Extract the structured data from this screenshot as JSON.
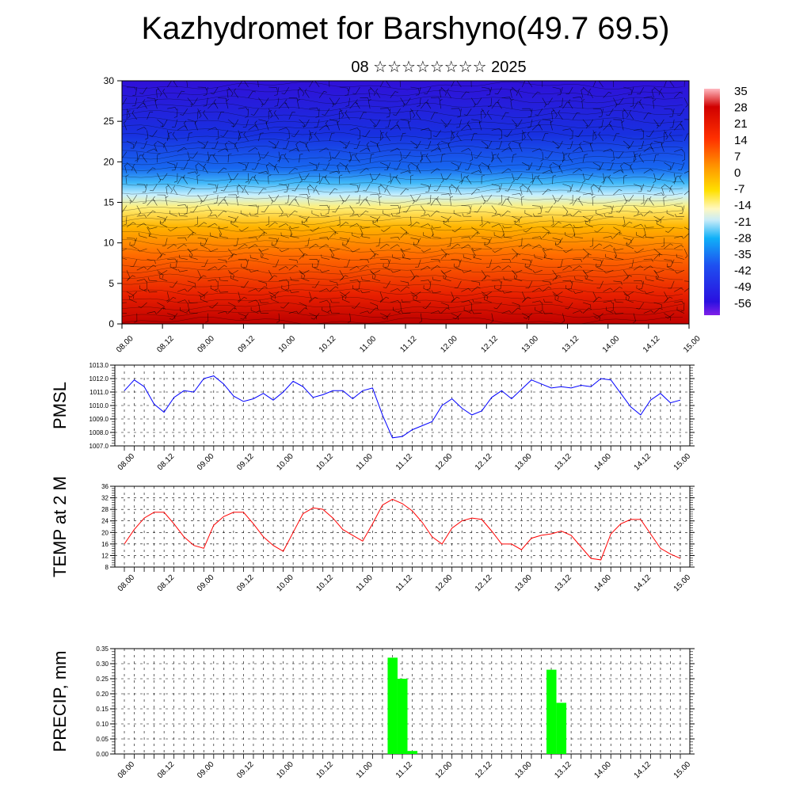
{
  "header": {
    "title": "Kazhydromet for Barshyno(49.7 69.5)",
    "subtitle": "08 ☆☆☆☆☆☆☆☆ 2025"
  },
  "colors": {
    "pmsl_line": "#0000ff",
    "temp_line": "#ff0000",
    "precip_bar": "#00ff00"
  },
  "chart_data": [
    {
      "type": "heatmap",
      "name": "cross-section",
      "title": "",
      "ylabel": "",
      "ylim": [
        0,
        30
      ],
      "yticks": [
        0,
        5,
        10,
        15,
        20,
        25,
        30
      ],
      "x_tick_labels": [
        "08.00",
        "08.12",
        "09.00",
        "09.12",
        "10.00",
        "10.12",
        "11.00",
        "11.12",
        "12.00",
        "12.12",
        "13.00",
        "13.12",
        "14.00",
        "14.12",
        "15.00"
      ],
      "colorbar_labels": [
        35,
        28,
        21,
        14,
        7,
        0,
        -7,
        -14,
        -21,
        -28,
        -35,
        -42,
        -49,
        -56
      ],
      "overlay": "wind barbs"
    },
    {
      "type": "line",
      "name": "pmsl",
      "ylabel": "PMSL",
      "ylim": [
        1007.0,
        1013.0
      ],
      "yticks": [
        "1007.0",
        "1008.0",
        "1009.0",
        "1010.0",
        "1011.0",
        "1012.0",
        "1013.0"
      ],
      "x_tick_labels": [
        "08.00",
        "08.12",
        "09.00",
        "09.12",
        "10.00",
        "10.12",
        "11.00",
        "11.12",
        "12.00",
        "12.12",
        "13.00",
        "13.12",
        "14.00",
        "14.12",
        "15.00"
      ],
      "x_step_hours": 3,
      "values": [
        1011.1,
        1011.9,
        1011.4,
        1010.1,
        1009.5,
        1010.6,
        1011.1,
        1011.0,
        1012.0,
        1012.2,
        1011.6,
        1010.7,
        1010.3,
        1010.5,
        1010.9,
        1010.4,
        1011.0,
        1011.8,
        1011.4,
        1010.6,
        1010.8,
        1011.1,
        1011.1,
        1010.5,
        1011.1,
        1011.3,
        1009.3,
        1007.6,
        1007.7,
        1008.2,
        1008.5,
        1008.8,
        1010.0,
        1010.5,
        1009.8,
        1009.3,
        1009.6,
        1010.6,
        1011.1,
        1010.5,
        1011.2,
        1011.9,
        1011.6,
        1011.3,
        1011.4,
        1011.3,
        1011.5,
        1011.4,
        1012.0,
        1011.9,
        1010.9,
        1009.9,
        1009.3,
        1010.4,
        1010.9,
        1010.2,
        1010.4
      ]
    },
    {
      "type": "line",
      "name": "temp",
      "ylabel": "TEMP at 2 M",
      "ylim": [
        8,
        36
      ],
      "yticks": [
        8,
        12,
        16,
        20,
        24,
        28,
        32,
        36
      ],
      "x_tick_labels": [
        "08.00",
        "08.12",
        "09.00",
        "09.12",
        "10.00",
        "10.12",
        "11.00",
        "11.12",
        "12.00",
        "12.12",
        "13.00",
        "13.12",
        "14.00",
        "14.12",
        "15.00"
      ],
      "x_step_hours": 3,
      "values": [
        16,
        21,
        25,
        27,
        27,
        23,
        18.5,
        15.5,
        14.5,
        22.5,
        25.5,
        27,
        27,
        23,
        18.5,
        15.5,
        13.5,
        20,
        26.5,
        28.5,
        28,
        25,
        21,
        19,
        17,
        23,
        29.5,
        31.5,
        30,
        27.5,
        23.5,
        18.5,
        16,
        21.5,
        24,
        25,
        24.5,
        20.5,
        16,
        16,
        14,
        18,
        19,
        19.5,
        20.5,
        19,
        15,
        11,
        10.5,
        19.5,
        23,
        24.5,
        24.5,
        19.5,
        14.5,
        12.5,
        11
      ]
    },
    {
      "type": "bar",
      "name": "precip",
      "ylabel": "PRECIP, mm",
      "ylim": [
        0,
        0.35
      ],
      "yticks": [
        "0.00",
        "0.05",
        "0.10",
        "0.15",
        "0.20",
        "0.25",
        "0.30",
        "0.35"
      ],
      "x_tick_labels": [
        "08.00",
        "08.12",
        "09.00",
        "09.12",
        "10.00",
        "10.12",
        "11.00",
        "11.12",
        "12.00",
        "12.12",
        "13.00",
        "13.12",
        "14.00",
        "14.12",
        "15.00"
      ],
      "bars": [
        {
          "hour": 81,
          "value": 0.32
        },
        {
          "hour": 84,
          "value": 0.25
        },
        {
          "hour": 87,
          "value": 0.01
        },
        {
          "hour": 129,
          "value": 0.28
        },
        {
          "hour": 132,
          "value": 0.17
        }
      ]
    }
  ]
}
